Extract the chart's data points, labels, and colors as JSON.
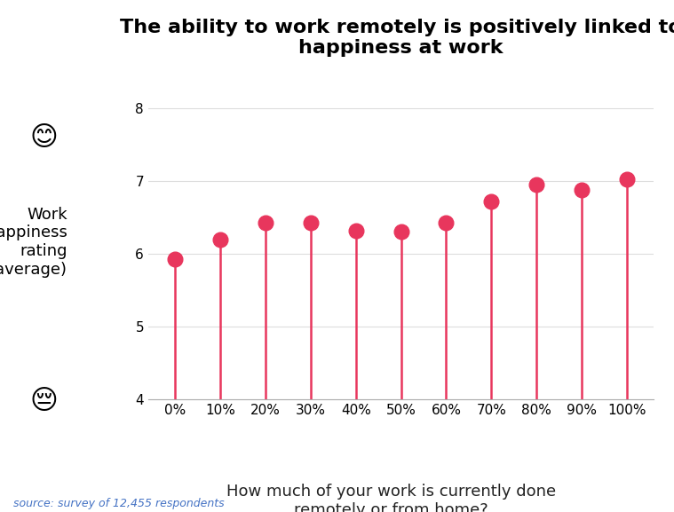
{
  "title_line1": "The ability to work remotely is positively linked to",
  "title_line2": "happiness at work",
  "xlabel_line1": "How much of your work is currently done",
  "xlabel_line2": "remotely or from home?",
  "ylabel_line1": "Work",
  "ylabel_line2": "happiness",
  "ylabel_line3": "rating",
  "ylabel_line4": "(average)",
  "source": "source: survey of 12,455 respondents",
  "categories": [
    "0%",
    "10%",
    "20%",
    "30%",
    "40%",
    "50%",
    "60%",
    "70%",
    "80%",
    "90%",
    "100%"
  ],
  "values": [
    5.93,
    6.19,
    6.42,
    6.42,
    6.32,
    6.3,
    6.42,
    6.72,
    6.95,
    6.88,
    7.02
  ],
  "ylim": [
    4,
    8.5
  ],
  "yticks": [
    4,
    5,
    6,
    7,
    8
  ],
  "lollipop_color": "#E8365D",
  "line_color": "#E8365D",
  "marker_size": 12,
  "line_width": 1.8,
  "bg_color": "#ffffff",
  "grid_color": "#dddddd",
  "title_fontsize": 16,
  "axis_label_fontsize": 13,
  "source_color": "#4472C4",
  "source_fontsize": 9,
  "tick_fontsize": 11
}
